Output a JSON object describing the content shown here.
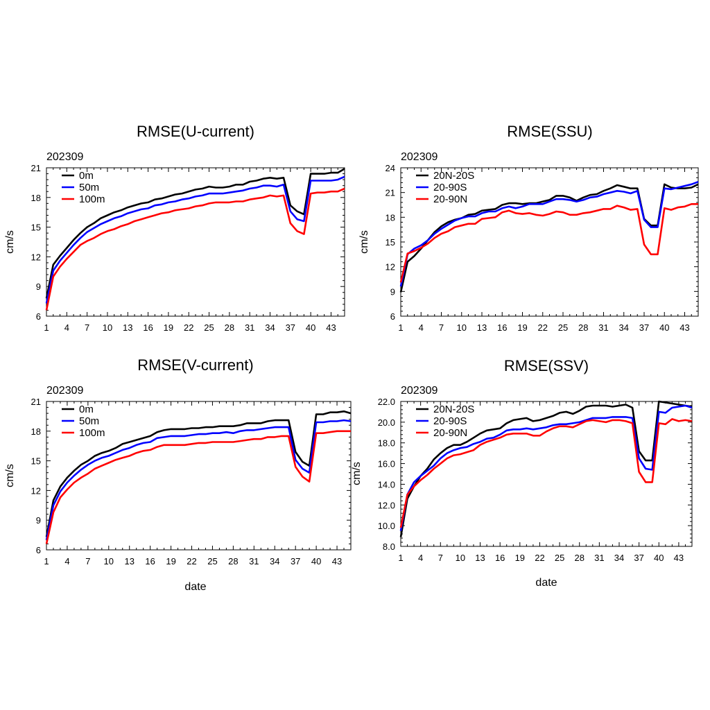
{
  "colors": {
    "series_0": "#000000",
    "series_1": "#0000ff",
    "series_2": "#ff0000"
  },
  "chart_data": [
    {
      "type": "line",
      "title": "RMSE(U-current)",
      "subtitle": "202309",
      "xlabel": "",
      "ylabel": "cm/s",
      "xlim": [
        1,
        45
      ],
      "ylim": [
        6,
        21
      ],
      "xticks": [
        "1",
        "4",
        "7",
        "10",
        "13",
        "16",
        "19",
        "22",
        "25",
        "28",
        "31",
        "34",
        "37",
        "40",
        "43"
      ],
      "yticks": [
        "6",
        "9",
        "12",
        "15",
        "18",
        "21"
      ],
      "legend_position": "top-left",
      "x": [
        1,
        2,
        3,
        4,
        5,
        6,
        7,
        8,
        9,
        10,
        11,
        12,
        13,
        14,
        15,
        16,
        17,
        18,
        19,
        20,
        21,
        22,
        23,
        24,
        25,
        26,
        27,
        28,
        29,
        30,
        31,
        32,
        33,
        34,
        35,
        36,
        37,
        38,
        39,
        40,
        41,
        42,
        43,
        44,
        45
      ],
      "series": [
        {
          "name": "0m",
          "values": [
            7.8,
            11.2,
            12.1,
            12.9,
            13.7,
            14.4,
            15.0,
            15.4,
            15.9,
            16.2,
            16.5,
            16.7,
            17.0,
            17.2,
            17.4,
            17.5,
            17.8,
            17.9,
            18.1,
            18.3,
            18.4,
            18.6,
            18.8,
            18.9,
            19.1,
            19.0,
            19.0,
            19.1,
            19.3,
            19.3,
            19.6,
            19.7,
            19.9,
            20.0,
            19.9,
            20.0,
            17.2,
            16.6,
            16.3,
            20.4,
            20.4,
            20.4,
            20.5,
            20.5,
            20.9
          ]
        },
        {
          "name": "50m",
          "values": [
            7.3,
            10.6,
            11.6,
            12.4,
            13.2,
            13.9,
            14.5,
            14.9,
            15.3,
            15.6,
            15.9,
            16.1,
            16.4,
            16.6,
            16.8,
            16.9,
            17.2,
            17.3,
            17.5,
            17.6,
            17.8,
            17.9,
            18.1,
            18.2,
            18.4,
            18.4,
            18.4,
            18.5,
            18.6,
            18.7,
            18.9,
            19.0,
            19.2,
            19.2,
            19.1,
            19.3,
            16.6,
            15.8,
            15.6,
            19.7,
            19.7,
            19.7,
            19.7,
            19.8,
            20.1
          ]
        },
        {
          "name": "100m",
          "values": [
            6.6,
            10.0,
            11.0,
            11.8,
            12.5,
            13.2,
            13.6,
            13.9,
            14.3,
            14.6,
            14.8,
            15.1,
            15.3,
            15.6,
            15.8,
            16.0,
            16.2,
            16.4,
            16.5,
            16.7,
            16.8,
            16.9,
            17.1,
            17.2,
            17.4,
            17.5,
            17.5,
            17.5,
            17.6,
            17.6,
            17.8,
            17.9,
            18.0,
            18.2,
            18.1,
            18.2,
            15.4,
            14.6,
            14.3,
            18.4,
            18.5,
            18.5,
            18.6,
            18.6,
            18.9
          ]
        }
      ]
    },
    {
      "type": "line",
      "title": "RMSE(SSU)",
      "subtitle": "202309",
      "xlabel": "",
      "ylabel": "cm/s",
      "xlim": [
        1,
        45
      ],
      "ylim": [
        6,
        24
      ],
      "xticks": [
        "1",
        "4",
        "7",
        "10",
        "13",
        "16",
        "19",
        "22",
        "25",
        "28",
        "31",
        "34",
        "37",
        "40",
        "43"
      ],
      "yticks": [
        "6",
        "9",
        "12",
        "15",
        "18",
        "21",
        "24"
      ],
      "legend_position": "top-left",
      "x": [
        1,
        2,
        3,
        4,
        5,
        6,
        7,
        8,
        9,
        10,
        11,
        12,
        13,
        14,
        15,
        16,
        17,
        18,
        19,
        20,
        21,
        22,
        23,
        24,
        25,
        26,
        27,
        28,
        29,
        30,
        31,
        32,
        33,
        34,
        35,
        36,
        37,
        38,
        39,
        40,
        41,
        42,
        43,
        44,
        45
      ],
      "series": [
        {
          "name": "20N-20S",
          "values": [
            8.9,
            12.6,
            13.3,
            14.2,
            15.2,
            16.2,
            16.9,
            17.4,
            17.7,
            17.9,
            18.3,
            18.4,
            18.8,
            18.9,
            19.0,
            19.5,
            19.7,
            19.7,
            19.6,
            19.7,
            19.7,
            19.9,
            20.1,
            20.6,
            20.6,
            20.4,
            20.0,
            20.4,
            20.7,
            20.8,
            21.2,
            21.5,
            21.9,
            21.7,
            21.5,
            21.5,
            17.8,
            17.0,
            17.0,
            22.0,
            21.6,
            21.5,
            21.5,
            21.6,
            22.0
          ]
        },
        {
          "name": "20-90S",
          "values": [
            9.6,
            13.5,
            14.2,
            14.6,
            15.2,
            16.0,
            16.6,
            17.1,
            17.6,
            17.9,
            18.1,
            18.1,
            18.5,
            18.7,
            18.7,
            19.1,
            19.3,
            19.1,
            19.3,
            19.6,
            19.6,
            19.6,
            19.9,
            20.2,
            20.2,
            20.1,
            19.9,
            20.1,
            20.4,
            20.5,
            20.8,
            21.0,
            21.2,
            21.1,
            20.9,
            21.2,
            17.7,
            16.8,
            16.8,
            21.5,
            21.4,
            21.6,
            21.8,
            22.0,
            22.3
          ]
        },
        {
          "name": "20-90N",
          "values": [
            10.1,
            13.6,
            13.9,
            14.3,
            14.8,
            15.5,
            16.0,
            16.3,
            16.8,
            17.0,
            17.2,
            17.2,
            17.8,
            17.9,
            18.0,
            18.6,
            18.8,
            18.5,
            18.4,
            18.5,
            18.3,
            18.2,
            18.4,
            18.7,
            18.6,
            18.3,
            18.3,
            18.5,
            18.6,
            18.8,
            19.0,
            19.0,
            19.4,
            19.2,
            18.9,
            19.0,
            14.7,
            13.5,
            13.5,
            19.1,
            18.9,
            19.2,
            19.3,
            19.6,
            19.6
          ]
        }
      ]
    },
    {
      "type": "line",
      "title": "RMSE(V-current)",
      "subtitle": "202309",
      "xlabel": "date",
      "ylabel": "cm/s",
      "xlim": [
        1,
        45
      ],
      "ylim": [
        6,
        21
      ],
      "xticks": [
        "1",
        "4",
        "7",
        "10",
        "13",
        "16",
        "19",
        "22",
        "25",
        "28",
        "31",
        "34",
        "37",
        "40",
        "43"
      ],
      "yticks": [
        "6",
        "9",
        "12",
        "15",
        "18",
        "21"
      ],
      "legend_position": "top-left",
      "x": [
        1,
        2,
        3,
        4,
        5,
        6,
        7,
        8,
        9,
        10,
        11,
        12,
        13,
        14,
        15,
        16,
        17,
        18,
        19,
        20,
        21,
        22,
        23,
        24,
        25,
        26,
        27,
        28,
        29,
        30,
        31,
        32,
        33,
        34,
        35,
        36,
        37,
        38,
        39,
        40,
        41,
        42,
        43,
        44,
        45
      ],
      "series": [
        {
          "name": "0m",
          "values": [
            7.3,
            11.0,
            12.4,
            13.3,
            14.0,
            14.6,
            15.0,
            15.5,
            15.8,
            16.0,
            16.3,
            16.7,
            16.9,
            17.1,
            17.3,
            17.5,
            17.9,
            18.1,
            18.2,
            18.2,
            18.2,
            18.3,
            18.3,
            18.4,
            18.4,
            18.5,
            18.5,
            18.5,
            18.6,
            18.8,
            18.8,
            18.8,
            19.0,
            19.1,
            19.1,
            19.1,
            15.9,
            14.9,
            14.5,
            19.7,
            19.7,
            19.9,
            19.9,
            20.0,
            19.8
          ]
        },
        {
          "name": "50m",
          "values": [
            7.0,
            10.5,
            11.9,
            12.8,
            13.5,
            14.1,
            14.6,
            15.0,
            15.3,
            15.5,
            15.8,
            16.1,
            16.3,
            16.6,
            16.8,
            16.9,
            17.3,
            17.4,
            17.5,
            17.5,
            17.5,
            17.6,
            17.7,
            17.7,
            17.8,
            17.8,
            17.9,
            17.8,
            18.0,
            18.1,
            18.1,
            18.2,
            18.3,
            18.4,
            18.4,
            18.4,
            15.1,
            14.2,
            13.8,
            18.9,
            18.9,
            19.0,
            19.0,
            19.1,
            19.0
          ]
        },
        {
          "name": "100m",
          "values": [
            6.6,
            9.8,
            11.3,
            12.1,
            12.8,
            13.3,
            13.7,
            14.2,
            14.5,
            14.8,
            15.1,
            15.3,
            15.5,
            15.8,
            16.0,
            16.1,
            16.4,
            16.6,
            16.6,
            16.6,
            16.6,
            16.7,
            16.8,
            16.8,
            16.9,
            16.9,
            16.9,
            16.9,
            17.0,
            17.1,
            17.2,
            17.2,
            17.4,
            17.4,
            17.5,
            17.5,
            14.4,
            13.4,
            12.9,
            17.8,
            17.8,
            17.9,
            18.0,
            18.0,
            18.0
          ]
        }
      ]
    },
    {
      "type": "line",
      "title": "RMSE(SSV)",
      "subtitle": "202309",
      "xlabel": "date",
      "ylabel": "cm/s",
      "xlim": [
        1,
        45
      ],
      "ylim": [
        8,
        22
      ],
      "xticks": [
        "1",
        "4",
        "7",
        "10",
        "13",
        "16",
        "19",
        "22",
        "25",
        "28",
        "31",
        "34",
        "37",
        "40",
        "43"
      ],
      "yticks": [
        "8.0",
        "10.0",
        "12.0",
        "14.0",
        "16.0",
        "18.0",
        "20.0",
        "22.0"
      ],
      "legend_position": "top-left",
      "x": [
        1,
        2,
        3,
        4,
        5,
        6,
        7,
        8,
        9,
        10,
        11,
        12,
        13,
        14,
        15,
        16,
        17,
        18,
        19,
        20,
        21,
        22,
        23,
        24,
        25,
        26,
        27,
        28,
        29,
        30,
        31,
        32,
        33,
        34,
        35,
        36,
        37,
        38,
        39,
        40,
        41,
        42,
        43,
        44,
        45
      ],
      "series": [
        {
          "name": "20N-20S",
          "values": [
            8.9,
            12.6,
            13.8,
            14.8,
            15.5,
            16.4,
            17.0,
            17.5,
            17.8,
            17.8,
            18.1,
            18.5,
            18.9,
            19.2,
            19.3,
            19.4,
            19.9,
            20.2,
            20.3,
            20.4,
            20.1,
            20.2,
            20.4,
            20.6,
            20.9,
            21.0,
            20.8,
            21.1,
            21.5,
            21.6,
            21.6,
            21.6,
            21.5,
            21.6,
            21.7,
            21.4,
            17.2,
            16.3,
            16.3,
            22.0,
            21.9,
            21.8,
            21.7,
            21.6,
            21.5
          ]
        },
        {
          "name": "20-90S",
          "values": [
            9.5,
            13.0,
            14.2,
            14.8,
            15.3,
            15.8,
            16.5,
            17.0,
            17.3,
            17.5,
            17.6,
            17.9,
            18.1,
            18.4,
            18.5,
            18.8,
            19.2,
            19.3,
            19.3,
            19.4,
            19.3,
            19.4,
            19.5,
            19.7,
            19.8,
            19.8,
            19.9,
            20.0,
            20.2,
            20.4,
            20.4,
            20.4,
            20.5,
            20.5,
            20.5,
            20.4,
            16.5,
            15.5,
            15.4,
            21.0,
            20.9,
            21.4,
            21.5,
            21.6,
            21.4
          ]
        },
        {
          "name": "20-90N",
          "values": [
            9.8,
            13.0,
            13.8,
            14.4,
            14.9,
            15.5,
            16.0,
            16.5,
            16.8,
            16.9,
            17.1,
            17.3,
            17.8,
            18.1,
            18.3,
            18.5,
            18.8,
            18.9,
            18.9,
            18.9,
            18.7,
            18.7,
            19.1,
            19.4,
            19.6,
            19.6,
            19.5,
            19.8,
            20.1,
            20.2,
            20.1,
            20.0,
            20.2,
            20.2,
            20.1,
            19.9,
            15.2,
            14.2,
            14.2,
            19.9,
            19.8,
            20.3,
            20.1,
            20.2,
            20.1
          ]
        }
      ]
    }
  ]
}
